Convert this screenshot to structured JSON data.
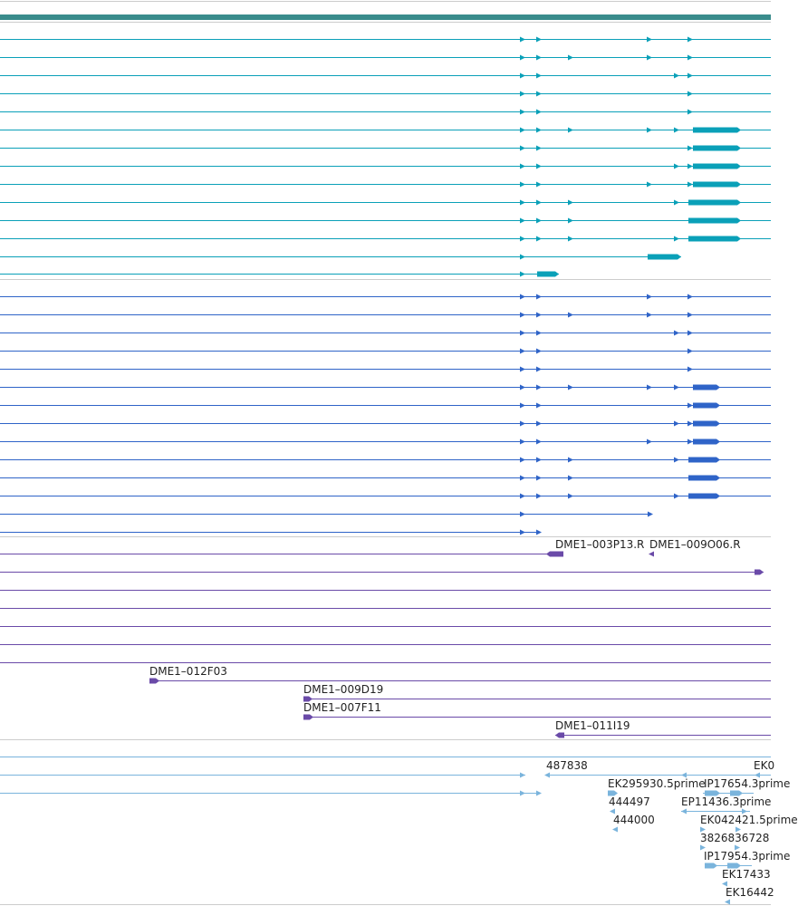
{
  "colors": {
    "gene_scale": "#3a8c8c",
    "cds_track": "#0aa0b8",
    "transcript_track": "#2f64c8",
    "clone_track": "#6a4aa8",
    "est_track": "#7ab4dc",
    "divider": "#cccccc"
  },
  "tracks": {
    "clones": {
      "labels": {
        "c1": "DME1–003P13.R",
        "c2": "DME1–009O06.R",
        "c3": "DME1–012F03",
        "c4": "DME1–009D19",
        "c5": "DME1–007F11",
        "c6": "DME1–011I19"
      }
    },
    "est": {
      "labels": {
        "e1": "487838",
        "e2": "EK0",
        "e3": "EK295930.5prime",
        "e4": "IP17654.3prime",
        "e5": "444497",
        "e6": "EP11436.3prime",
        "e7": "444000",
        "e8": "EK042421.5prime",
        "e9": "3826836728",
        "e10": "IP17954.3prime",
        "e11": "EK17433",
        "e12": "EK16442"
      }
    }
  }
}
